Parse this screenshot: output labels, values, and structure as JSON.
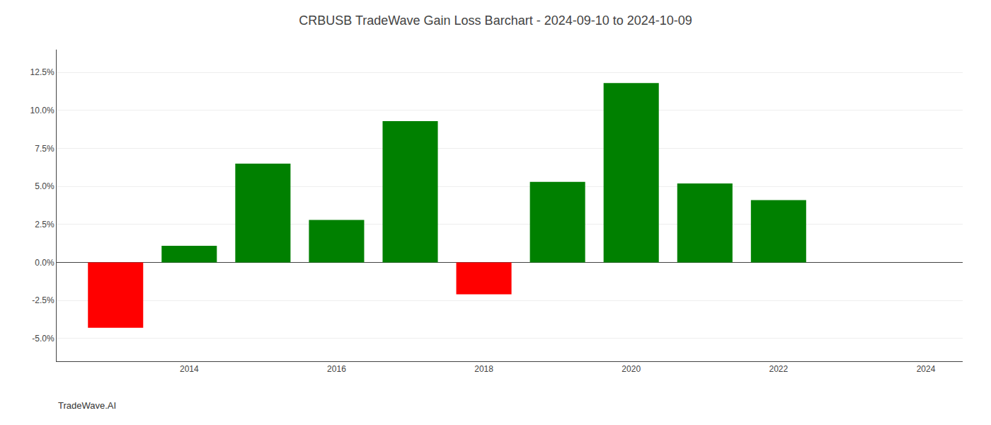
{
  "chart_data": {
    "type": "bar",
    "title": "CRBUSB TradeWave Gain Loss Barchart - 2024-09-10 to 2024-10-09",
    "annotations": [
      "TradeWave.AI"
    ],
    "x": [
      2013,
      2014,
      2015,
      2016,
      2017,
      2018,
      2019,
      2020,
      2021,
      2022,
      2023
    ],
    "values": [
      -0.043,
      0.011,
      0.065,
      0.028,
      0.093,
      -0.021,
      0.053,
      0.118,
      0.052,
      0.041,
      0.0
    ],
    "colors": [
      "#ff0000",
      "#008000",
      "#008000",
      "#008000",
      "#008000",
      "#ff0000",
      "#008000",
      "#008000",
      "#008000",
      "#008000",
      "#008000"
    ],
    "xlim": [
      2012.2,
      2024.5
    ],
    "xticks": [
      2014,
      2016,
      2018,
      2020,
      2022,
      2024
    ],
    "ylim": [
      -0.065,
      0.14
    ],
    "yticks": [
      {
        "value": -0.05,
        "label": "-5.0%"
      },
      {
        "value": -0.025,
        "label": "-2.5%"
      },
      {
        "value": 0.0,
        "label": "0.0%"
      },
      {
        "value": 0.025,
        "label": "2.5%"
      },
      {
        "value": 0.05,
        "label": "5.0%"
      },
      {
        "value": 0.075,
        "label": "7.5%"
      },
      {
        "value": 0.1,
        "label": "10.0%"
      },
      {
        "value": 0.125,
        "label": "12.5%"
      }
    ],
    "grid": true
  }
}
